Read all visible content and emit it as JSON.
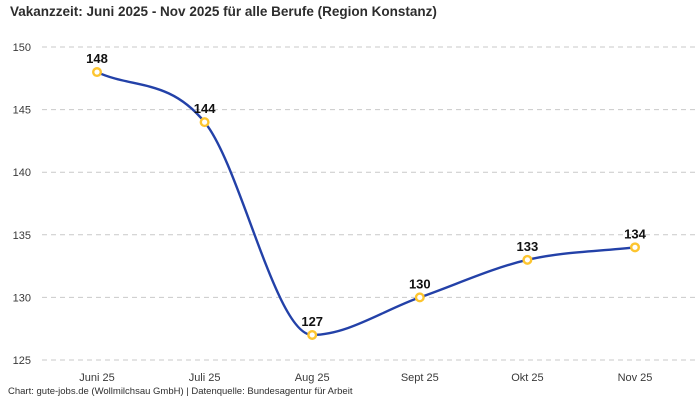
{
  "chart_data": {
    "type": "line",
    "title": "Vakanzzeit: Juni 2025 - Nov 2025 für alle Berufe (Region Konstanz)",
    "categories": [
      "Juni 25",
      "Juli 25",
      "Aug 25",
      "Sept 25",
      "Okt 25",
      "Nov 25"
    ],
    "series": [
      {
        "name": "Vakanzzeit",
        "values": [
          148,
          144,
          127,
          130,
          133,
          134
        ]
      }
    ],
    "ylim": [
      125,
      150
    ],
    "yticks": [
      125,
      130,
      135,
      140,
      145,
      150
    ],
    "grid": "horizontal-dashed",
    "legend": "none",
    "data_labels_shown": true,
    "colors": {
      "line": "#2341a8",
      "marker_ring": "#fdc52f",
      "marker_fill": "#ffffff",
      "gridline": "#c9c9c9",
      "tick_label": "#3a3a3a",
      "data_label": "#111111",
      "title": "#2d2d2d"
    }
  },
  "footer": {
    "text": "Chart: gute-jobs.de (Wollmilchsau GmbH) | Datenquelle: Bundesagentur für Arbeit"
  }
}
